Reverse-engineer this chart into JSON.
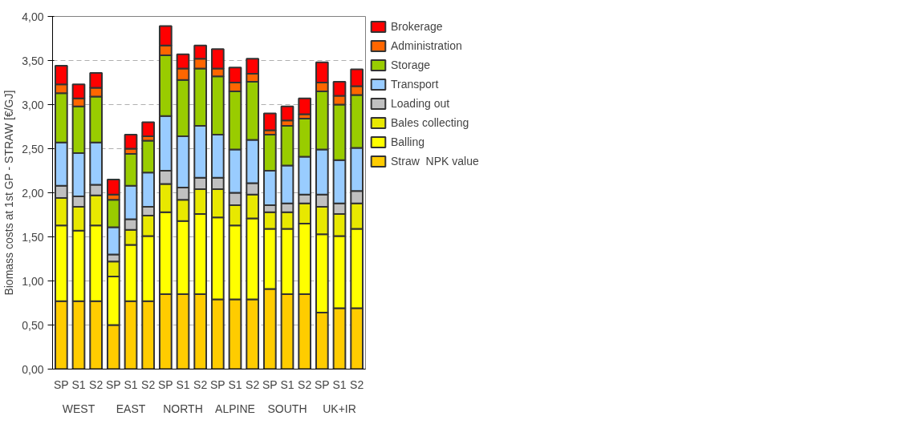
{
  "chart_data": {
    "type": "bar",
    "stacked": true,
    "ylabel": "Biomass costs at 1st GP - STRAW [€/GJ]",
    "categories": [
      "SP",
      "S1",
      "S2",
      "SP",
      "S1",
      "S2",
      "SP",
      "S1",
      "S2",
      "SP",
      "S1",
      "S2",
      "SP",
      "S1",
      "S2",
      "SP",
      "S1",
      "S2"
    ],
    "annotations": [
      "WEST",
      "EAST",
      "NORTH",
      "ALPINE",
      "SOUTH",
      "UK+IR"
    ],
    "series": [
      {
        "name": "Straw  NPK value",
        "color": "#ffcc00",
        "values": [
          0.77,
          0.77,
          0.77,
          0.5,
          0.77,
          0.77,
          0.85,
          0.85,
          0.85,
          0.79,
          0.79,
          0.79,
          0.91,
          0.85,
          0.85,
          0.64,
          0.69,
          0.69
        ]
      },
      {
        "name": "Balling",
        "color": "#ffff00",
        "values": [
          0.86,
          0.8,
          0.86,
          0.55,
          0.64,
          0.74,
          0.93,
          0.83,
          0.91,
          0.93,
          0.84,
          0.92,
          0.68,
          0.74,
          0.8,
          0.89,
          0.82,
          0.9
        ]
      },
      {
        "name": "Bales collecting",
        "color": "#e8e800",
        "values": [
          0.31,
          0.27,
          0.34,
          0.17,
          0.17,
          0.23,
          0.32,
          0.24,
          0.28,
          0.32,
          0.23,
          0.27,
          0.19,
          0.19,
          0.23,
          0.31,
          0.25,
          0.29
        ]
      },
      {
        "name": "Loading out",
        "color": "#c0c0c0",
        "values": [
          0.14,
          0.12,
          0.12,
          0.08,
          0.12,
          0.1,
          0.15,
          0.14,
          0.13,
          0.13,
          0.14,
          0.13,
          0.08,
          0.1,
          0.1,
          0.14,
          0.12,
          0.14
        ]
      },
      {
        "name": "Transport",
        "color": "#99ccff",
        "values": [
          0.49,
          0.49,
          0.48,
          0.31,
          0.38,
          0.39,
          0.62,
          0.58,
          0.59,
          0.49,
          0.49,
          0.49,
          0.39,
          0.43,
          0.43,
          0.51,
          0.49,
          0.49
        ]
      },
      {
        "name": "Storage",
        "color": "#99cc00",
        "values": [
          0.56,
          0.53,
          0.52,
          0.31,
          0.36,
          0.36,
          0.69,
          0.64,
          0.65,
          0.66,
          0.66,
          0.66,
          0.41,
          0.45,
          0.43,
          0.66,
          0.63,
          0.6
        ]
      },
      {
        "name": "Administration",
        "color": "#ff6600",
        "values": [
          0.1,
          0.09,
          0.1,
          0.06,
          0.06,
          0.05,
          0.11,
          0.13,
          0.11,
          0.09,
          0.1,
          0.09,
          0.05,
          0.06,
          0.05,
          0.1,
          0.1,
          0.1
        ]
      },
      {
        "name": "Brokerage",
        "color": "#ff0000",
        "values": [
          0.21,
          0.16,
          0.17,
          0.17,
          0.16,
          0.16,
          0.22,
          0.16,
          0.15,
          0.22,
          0.17,
          0.17,
          0.19,
          0.16,
          0.18,
          0.23,
          0.16,
          0.19
        ]
      }
    ],
    "ylim": [
      0,
      4
    ],
    "yticks": [
      {
        "value": 0,
        "label": "0,00"
      },
      {
        "value": 0.5,
        "label": "0,50"
      },
      {
        "value": 1,
        "label": "1,00"
      },
      {
        "value": 1.5,
        "label": "1,50"
      },
      {
        "value": 2,
        "label": "2,00"
      },
      {
        "value": 2.5,
        "label": "2,50"
      },
      {
        "value": 3,
        "label": "3,00"
      },
      {
        "value": 3.5,
        "label": "3,50"
      },
      {
        "value": 4,
        "label": "4,00"
      }
    ],
    "grid": "y",
    "legend": "right"
  }
}
